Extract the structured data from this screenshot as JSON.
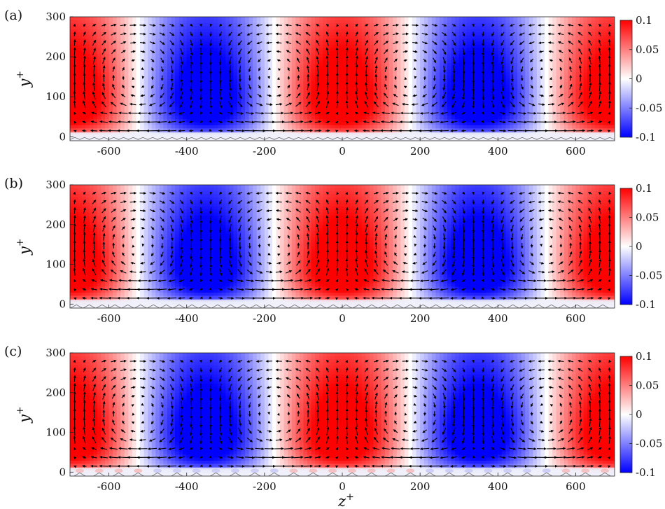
{
  "chart_data": [
    {
      "type": "heatmap",
      "panel_label": "(a)",
      "ylabel": "y+",
      "xlabel": "",
      "xlim": [
        -700,
        700
      ],
      "ylim": [
        -10,
        300
      ],
      "xticks": [
        -600,
        -400,
        -200,
        0,
        200,
        400,
        600
      ],
      "yticks": [
        0,
        100,
        200,
        300
      ],
      "colorbar": {
        "range": [
          -0.1,
          0.1
        ],
        "ticks": [
          0.1,
          0.05,
          0,
          -0.05,
          -0.1
        ],
        "colormap": "blue-white-red"
      },
      "field": {
        "peak_wavelength_z": 700,
        "peak_y": 100,
        "amplitude": 0.1,
        "red_centers_z": [
          -700,
          0,
          700
        ],
        "blue_centers_z": [
          -350,
          350
        ]
      },
      "vectors": "secondary-flow-arrows",
      "wall": {
        "type": "zigzag",
        "period_z": 25
      }
    },
    {
      "type": "heatmap",
      "panel_label": "(b)",
      "ylabel": "y+",
      "xlabel": "",
      "xlim": [
        -700,
        700
      ],
      "ylim": [
        -10,
        300
      ],
      "xticks": [
        -600,
        -400,
        -200,
        0,
        200,
        400,
        600
      ],
      "yticks": [
        0,
        100,
        200,
        300
      ],
      "colorbar": {
        "range": [
          -0.1,
          0.1
        ],
        "ticks": [
          0.1,
          0.05,
          0,
          -0.05,
          -0.1
        ],
        "colormap": "blue-white-red"
      },
      "field": {
        "peak_wavelength_z": 700,
        "peak_y": 100,
        "amplitude": 0.1,
        "red_centers_z": [
          -700,
          0,
          700
        ],
        "blue_centers_z": [
          -350,
          350
        ]
      },
      "vectors": "secondary-flow-arrows",
      "wall": {
        "type": "zigzag",
        "period_z": 33
      }
    },
    {
      "type": "heatmap",
      "panel_label": "(c)",
      "ylabel": "y+",
      "xlabel": "z+",
      "xlim": [
        -700,
        700
      ],
      "ylim": [
        -10,
        300
      ],
      "xticks": [
        -600,
        -400,
        -200,
        0,
        200,
        400,
        600
      ],
      "yticks": [
        0,
        100,
        200,
        300
      ],
      "colorbar": {
        "range": [
          -0.1,
          0.1
        ],
        "ticks": [
          0.1,
          0.05,
          0,
          -0.05,
          -0.1
        ],
        "colormap": "blue-white-red"
      },
      "field": {
        "peak_wavelength_z": 700,
        "peak_y": 100,
        "amplitude": 0.1,
        "red_centers_z": [
          -700,
          0,
          700
        ],
        "blue_centers_z": [
          -350,
          350
        ]
      },
      "vectors": "secondary-flow-arrows",
      "wall": {
        "type": "zigzag",
        "period_z": 50
      }
    }
  ],
  "axes": {
    "y_label_main": "y",
    "y_label_sup": "+",
    "x_label_main": "z",
    "x_label_sup": "+"
  }
}
